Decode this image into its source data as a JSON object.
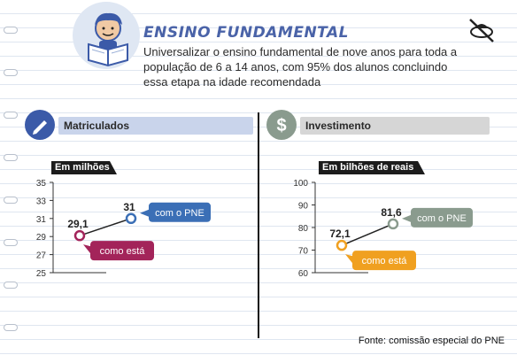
{
  "header": {
    "title": "ENSINO FUNDAMENTAL",
    "description": "Universalizar o ensino fundamental de nove anos para toda a população de 6 a 14 anos, com 95% dos alunos concluindo essa etapa na idade recomendada"
  },
  "sections": [
    {
      "title": "Matriculados",
      "icon": "pencil-icon"
    },
    {
      "title": "Investimento",
      "icon": "dollar-icon"
    }
  ],
  "charts": [
    {
      "unit": "Em milhões"
    },
    {
      "unit": "Em bilhões de reais"
    }
  ],
  "chart_data": [
    {
      "type": "line",
      "title": "Matriculados",
      "ylabel": "Em milhões",
      "yticks": [
        25,
        27,
        29,
        31,
        33,
        35
      ],
      "ylim": [
        25,
        35
      ],
      "points": [
        {
          "label": "como está",
          "y": 29.1,
          "value_label": "29,1",
          "color": "#a3245a"
        },
        {
          "label": "com o PNE",
          "y": 31,
          "value_label": "31",
          "color": "#3b6fb6"
        }
      ]
    },
    {
      "type": "line",
      "title": "Investimento",
      "ylabel": "Em bilhões de reais",
      "yticks": [
        60,
        70,
        80,
        90,
        100
      ],
      "ylim": [
        60,
        100
      ],
      "points": [
        {
          "label": "como está",
          "y": 72.1,
          "value_label": "72,1",
          "color": "#f0a020"
        },
        {
          "label": "com o PNE",
          "y": 81.6,
          "value_label": "81,6",
          "color": "#8a9b8e"
        }
      ]
    }
  ],
  "footer": {
    "source": "Fonte: comissão especial do PNE"
  }
}
